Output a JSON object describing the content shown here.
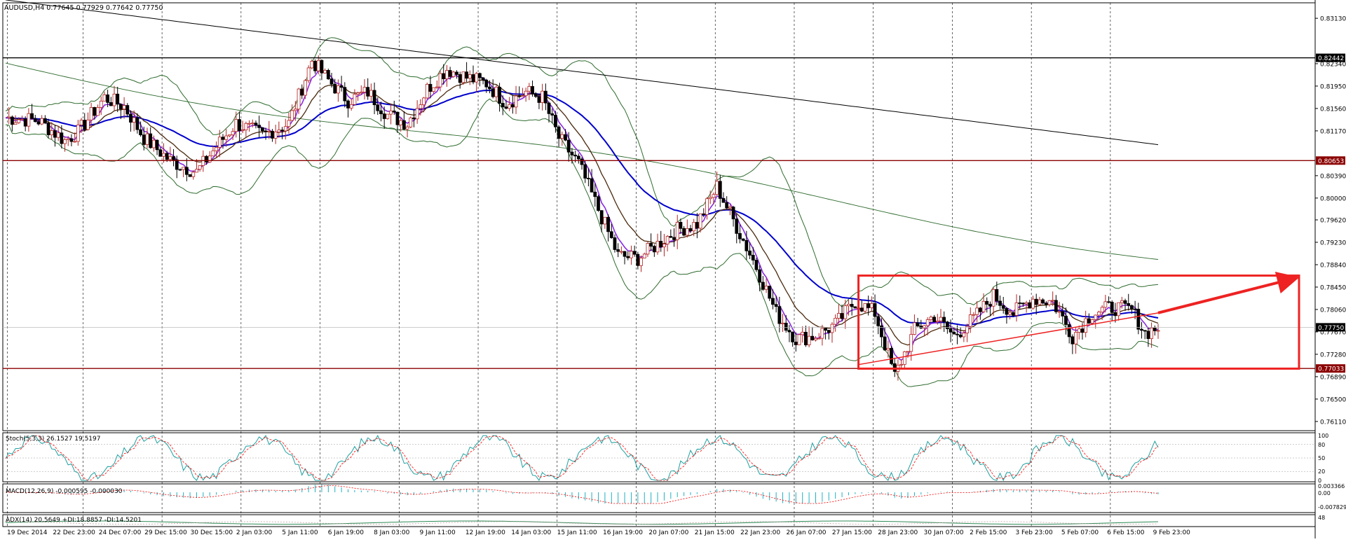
{
  "window": {
    "title": "AUDUSD,H4  0.77645 0.77929 0.77642 0.77750"
  },
  "colors": {
    "background": "#ffffff",
    "grid": "#000000",
    "bull_candle": "#b22222",
    "bear_candle": "#000000",
    "ma_fast": "#8a2be2",
    "ma_mid": "#4b2a0e",
    "ma_slow": "#0000cc",
    "ma_long": "#000000",
    "bollinger": "#2e6b2e",
    "support_resistance": "#8b0000",
    "box_and_arrow": "#ee2222",
    "stoch_main": "#20a0a0",
    "stoch_signal": "#ff0000",
    "macd_hist": "#20b0c0",
    "adx": "#2e8b57"
  },
  "chart_data": {
    "type": "candlestick",
    "symbol": "AUDUSD",
    "timeframe": "H4",
    "ylim": [
      0.7595,
      0.834
    ],
    "y_ticks": [
      "0.83130",
      "0.82340",
      "0.81950",
      "0.81560",
      "0.81170",
      "0.80390",
      "0.80000",
      "0.79620",
      "0.79230",
      "0.78840",
      "0.78450",
      "0.78060",
      "0.77670",
      "0.77280",
      "0.76890",
      "0.76500",
      "0.76110"
    ],
    "x_labels": [
      "19 Dec 2014",
      "22 Dec 23:00",
      "24 Dec 07:00",
      "29 Dec 15:00",
      "30 Dec 15:00",
      "2 Jan 03:00",
      "5 Jan 11:00",
      "6 Jan 19:00",
      "8 Jan 03:00",
      "9 Jan 11:00",
      "12 Jan 19:00",
      "14 Jan 03:00",
      "15 Jan 11:00",
      "16 Jan 19:00",
      "20 Jan 07:00",
      "21 Jan 15:00",
      "22 Jan 23:00",
      "26 Jan 07:00",
      "27 Jan 15:00",
      "28 Jan 23:00",
      "30 Jan 07:00",
      "2 Feb 15:00",
      "3 Feb 23:00",
      "5 Feb 07:00",
      "6 Feb 15:00",
      "9 Feb 23:00"
    ],
    "horizontal_levels": [
      {
        "price": 0.82442,
        "label": "0.82442",
        "color": "#000000"
      },
      {
        "price": 0.80653,
        "label": "0.80653",
        "color": "#8b0000"
      },
      {
        "price": 0.77033,
        "label": "0.77033",
        "color": "#8b0000"
      }
    ],
    "current_price": {
      "price": 0.7775,
      "label": "0.77750"
    },
    "price_path": [
      [
        0,
        0.814
      ],
      [
        10,
        0.8135
      ],
      [
        18,
        0.81
      ],
      [
        22,
        0.8115
      ],
      [
        30,
        0.8175
      ],
      [
        36,
        0.816
      ],
      [
        42,
        0.8105
      ],
      [
        50,
        0.8065
      ],
      [
        58,
        0.8045
      ],
      [
        64,
        0.809
      ],
      [
        70,
        0.813
      ],
      [
        78,
        0.811
      ],
      [
        86,
        0.813
      ],
      [
        93,
        0.824
      ],
      [
        98,
        0.8205
      ],
      [
        104,
        0.817
      ],
      [
        110,
        0.8185
      ],
      [
        116,
        0.8145
      ],
      [
        122,
        0.813
      ],
      [
        128,
        0.819
      ],
      [
        134,
        0.8225
      ],
      [
        140,
        0.821
      ],
      [
        146,
        0.82
      ],
      [
        152,
        0.8165
      ],
      [
        158,
        0.8185
      ],
      [
        163,
        0.8175
      ],
      [
        168,
        0.8105
      ],
      [
        174,
        0.806
      ],
      [
        180,
        0.798
      ],
      [
        186,
        0.79
      ],
      [
        192,
        0.7895
      ],
      [
        198,
        0.792
      ],
      [
        204,
        0.7945
      ],
      [
        210,
        0.7955
      ],
      [
        216,
        0.802
      ],
      [
        222,
        0.795
      ],
      [
        228,
        0.788
      ],
      [
        234,
        0.78
      ],
      [
        240,
        0.7755
      ],
      [
        246,
        0.776
      ],
      [
        252,
        0.778
      ],
      [
        258,
        0.782
      ],
      [
        264,
        0.78
      ],
      [
        270,
        0.769
      ],
      [
        276,
        0.777
      ],
      [
        282,
        0.7795
      ],
      [
        288,
        0.776
      ],
      [
        294,
        0.779
      ],
      [
        300,
        0.783
      ],
      [
        306,
        0.78
      ],
      [
        312,
        0.7825
      ],
      [
        318,
        0.782
      ],
      [
        324,
        0.776
      ],
      [
        330,
        0.78
      ],
      [
        336,
        0.781
      ],
      [
        342,
        0.7805
      ],
      [
        346,
        0.7765
      ],
      [
        350,
        0.7775
      ]
    ],
    "indicators": [
      {
        "name": "Stoch(5,3,3) 26.1527 19.5197",
        "levels": [
          "100",
          "80",
          "50",
          "20",
          "0"
        ]
      },
      {
        "name": "MACD(12,26,9) -0.000595 -0.000030",
        "levels": [
          "0.003366",
          "0.00",
          "-0.007829"
        ]
      },
      {
        "name": "ADX(14) 20.5649 +DI:18.8857 -DI:14.5201",
        "levels": [
          "48"
        ]
      }
    ]
  }
}
